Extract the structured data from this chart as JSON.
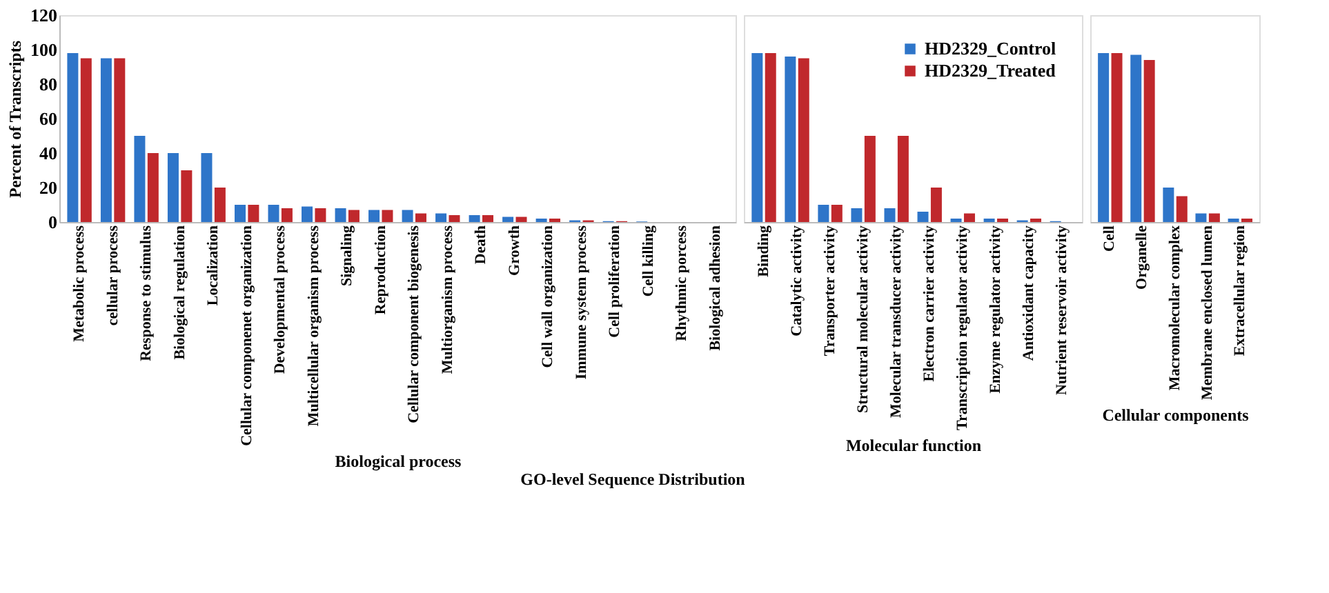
{
  "chart_data": [
    {
      "type": "bar",
      "xlabel": "Biological process",
      "ylabel": "Percent of Transcripts",
      "annotations": [
        "GO-level Sequence Distribution"
      ],
      "categories": [
        "Metabolic process",
        "cellular process",
        "Response to stimulus",
        "Biological regulation",
        "Localization",
        "Cellular componenet organization",
        "Developmental process",
        "Multicellular organism process",
        "Signaling",
        "Reproduction",
        "Cellular component biogenesis",
        "Multiorganism process",
        "Death",
        "Growth",
        "Cell wall organization",
        "Immune system process",
        "Cell proliferation",
        "Cell killing",
        "Rhythmic porcess",
        "Biological adhesion"
      ],
      "series": [
        {
          "color": "#2e75c9",
          "values": [
            98,
            95,
            50,
            40,
            40,
            10,
            10,
            9,
            8,
            7,
            7,
            5,
            4,
            3,
            2,
            1,
            0.5,
            0.3,
            0,
            0
          ]
        },
        {
          "color": "#c0282c",
          "values": [
            95,
            95,
            40,
            30,
            20,
            10,
            8,
            8,
            7,
            7,
            5,
            4,
            4,
            3,
            2,
            1,
            0.5,
            0,
            0,
            0
          ]
        }
      ],
      "ylim": [
        0,
        120
      ],
      "yticks": [
        0,
        20,
        40,
        60,
        80,
        100,
        120
      ],
      "grid": false,
      "legend": false
    },
    {
      "type": "bar",
      "xlabel": "Molecular function",
      "categories": [
        "Binding",
        "Catalytic activity",
        "Transporter activity",
        "Structural molecular activity",
        "Molecular transducer activity",
        "Electron carrier activity",
        "Transcription regulator activity",
        "Enzyme regulator activity",
        "Antioxidant capacity",
        "Nutrient reservoir activity"
      ],
      "series": [
        {
          "name": "HD2329_Control",
          "color": "#2e75c9",
          "values": [
            98,
            96,
            10,
            8,
            8,
            6,
            2,
            2,
            1,
            0.5
          ]
        },
        {
          "name": "HD2329_Treated",
          "color": "#c0282c",
          "values": [
            98,
            95,
            10,
            50,
            50,
            20,
            5,
            2,
            2,
            0
          ]
        }
      ],
      "ylim": [
        0,
        120
      ],
      "yticks": [
        0,
        20,
        40,
        60,
        80,
        100,
        120
      ],
      "tick_labels": "x",
      "grid": false,
      "legend": "top right"
    },
    {
      "type": "bar",
      "xlabel": "Cellular components",
      "categories": [
        "Cell",
        "Organelle",
        "Macromolecular complex",
        "Membrane enclosed lumen",
        "Extracellular region"
      ],
      "series": [
        {
          "color": "#2e75c9",
          "values": [
            98,
            97,
            20,
            5,
            2
          ]
        },
        {
          "color": "#c0282c",
          "values": [
            98,
            94,
            15,
            5,
            2
          ]
        }
      ],
      "ylim": [
        0,
        120
      ],
      "yticks": [
        0,
        20,
        40,
        60,
        80,
        100,
        120
      ],
      "tick_labels": "x",
      "grid": false,
      "legend": false
    }
  ]
}
